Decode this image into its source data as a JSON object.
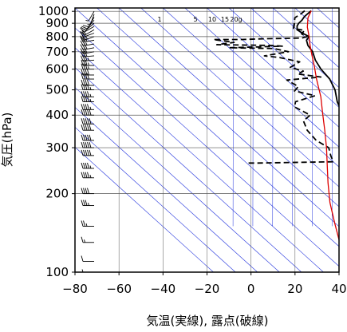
{
  "chart_data": {
    "type": "line",
    "title": "",
    "xlabel": "気温(実線), 露点(破線)",
    "ylabel": "気圧(hPa)",
    "xlim": [
      -80,
      40
    ],
    "ylim": [
      1030,
      100
    ],
    "y_scale": "log",
    "grid": true,
    "x_ticks": [
      -80,
      -60,
      -40,
      -20,
      0,
      20,
      40
    ],
    "y_ticks": [
      100,
      200,
      300,
      400,
      500,
      600,
      700,
      800,
      900,
      1000
    ],
    "mixing_ratio_labels": [
      "1",
      "5",
      "10",
      "15",
      "20g"
    ],
    "colors": {
      "temperature": "#000000",
      "dewpoint": "#000000",
      "parcel": "#dd0000",
      "isotherm": "#2233dd",
      "grid": "#555555"
    },
    "series": [
      {
        "key": "temperature",
        "style": "solid",
        "points": [
          [
            26,
            1005
          ],
          [
            23,
            980
          ],
          [
            20,
            955
          ],
          [
            17,
            925
          ],
          [
            14,
            900
          ],
          [
            12,
            880
          ],
          [
            10,
            850
          ],
          [
            11,
            820
          ],
          [
            12,
            800
          ],
          [
            9,
            775
          ],
          [
            7,
            740
          ],
          [
            6,
            700
          ],
          [
            3,
            650
          ],
          [
            1,
            600
          ],
          [
            0,
            550
          ],
          [
            -3,
            500
          ],
          [
            -8,
            450
          ],
          [
            -12,
            400
          ],
          [
            -18,
            350
          ],
          [
            -25,
            300
          ],
          [
            -33,
            250
          ],
          [
            -43,
            200
          ],
          [
            -52,
            170
          ],
          [
            -58,
            150
          ],
          [
            -65,
            130
          ],
          [
            -68,
            120
          ],
          [
            -70,
            115
          ],
          [
            -72,
            110
          ],
          [
            -71,
            106
          ],
          [
            -72,
            103
          ],
          [
            -72,
            100
          ]
        ]
      },
      {
        "key": "dewpoint",
        "style": "dashed",
        "points": [
          [
            23,
            1005
          ],
          [
            20,
            980
          ],
          [
            15,
            945
          ],
          [
            12,
            900
          ],
          [
            9,
            860
          ],
          [
            13,
            845
          ],
          [
            10,
            820
          ],
          [
            11,
            800
          ],
          [
            8,
            790
          ],
          [
            -10,
            785
          ],
          [
            -20,
            780
          ],
          [
            -33,
            780
          ],
          [
            -25,
            760
          ],
          [
            -34,
            745
          ],
          [
            -10,
            740
          ],
          [
            -5,
            735
          ],
          [
            -30,
            725
          ],
          [
            -10,
            720
          ],
          [
            -5,
            700
          ],
          [
            -18,
            675
          ],
          [
            -12,
            665
          ],
          [
            -5,
            640
          ],
          [
            -12,
            610
          ],
          [
            -8,
            590
          ],
          [
            -12,
            575
          ],
          [
            -3,
            560
          ],
          [
            -20,
            545
          ],
          [
            -18,
            515
          ],
          [
            -22,
            495
          ],
          [
            -15,
            475
          ],
          [
            -27,
            450
          ],
          [
            -30,
            430
          ],
          [
            -27,
            400
          ],
          [
            -33,
            380
          ],
          [
            -36,
            350
          ],
          [
            -37,
            320
          ],
          [
            -35,
            300
          ],
          [
            -38,
            280
          ],
          [
            -40,
            265
          ],
          [
            -75,
            262
          ],
          [
            -80,
            262
          ]
        ]
      },
      {
        "key": "parcel",
        "style": "solid",
        "points": [
          [
            26,
            1005
          ],
          [
            21,
            945
          ],
          [
            16,
            870
          ],
          [
            12,
            800
          ],
          [
            8,
            740
          ],
          [
            4,
            680
          ],
          [
            -1,
            610
          ],
          [
            -6,
            550
          ],
          [
            -13,
            470
          ],
          [
            -20,
            410
          ],
          [
            -28,
            350
          ],
          [
            -36,
            300
          ],
          [
            -46,
            250
          ],
          [
            -53,
            220
          ],
          [
            -62,
            185
          ],
          [
            -70,
            155
          ],
          [
            -76,
            135
          ],
          [
            -80,
            123
          ]
        ]
      }
    ],
    "wind_barbs": [
      {
        "pressure": 1000,
        "direction": 210,
        "speed_kt": 5
      },
      {
        "pressure": 975,
        "direction": 200,
        "speed_kt": 5
      },
      {
        "pressure": 950,
        "direction": 210,
        "speed_kt": 10
      },
      {
        "pressure": 925,
        "direction": 220,
        "speed_kt": 10
      },
      {
        "pressure": 900,
        "direction": 230,
        "speed_kt": 15
      },
      {
        "pressure": 875,
        "direction": 240,
        "speed_kt": 15
      },
      {
        "pressure": 850,
        "direction": 240,
        "speed_kt": 20
      },
      {
        "pressure": 825,
        "direction": 250,
        "speed_kt": 20
      },
      {
        "pressure": 800,
        "direction": 250,
        "speed_kt": 25
      },
      {
        "pressure": 775,
        "direction": 260,
        "speed_kt": 25
      },
      {
        "pressure": 750,
        "direction": 260,
        "speed_kt": 25
      },
      {
        "pressure": 725,
        "direction": 260,
        "speed_kt": 30
      },
      {
        "pressure": 700,
        "direction": 260,
        "speed_kt": 30
      },
      {
        "pressure": 675,
        "direction": 265,
        "speed_kt": 30
      },
      {
        "pressure": 650,
        "direction": 265,
        "speed_kt": 35
      },
      {
        "pressure": 620,
        "direction": 270,
        "speed_kt": 35
      },
      {
        "pressure": 600,
        "direction": 270,
        "speed_kt": 35
      },
      {
        "pressure": 570,
        "direction": 270,
        "speed_kt": 40
      },
      {
        "pressure": 550,
        "direction": 270,
        "speed_kt": 40
      },
      {
        "pressure": 520,
        "direction": 270,
        "speed_kt": 40
      },
      {
        "pressure": 500,
        "direction": 270,
        "speed_kt": 45
      },
      {
        "pressure": 470,
        "direction": 270,
        "speed_kt": 45
      },
      {
        "pressure": 450,
        "direction": 270,
        "speed_kt": 45
      },
      {
        "pressure": 420,
        "direction": 270,
        "speed_kt": 45
      },
      {
        "pressure": 400,
        "direction": 270,
        "speed_kt": 50
      },
      {
        "pressure": 370,
        "direction": 270,
        "speed_kt": 50
      },
      {
        "pressure": 350,
        "direction": 270,
        "speed_kt": 50
      },
      {
        "pressure": 320,
        "direction": 270,
        "speed_kt": 50
      },
      {
        "pressure": 300,
        "direction": 270,
        "speed_kt": 50
      },
      {
        "pressure": 280,
        "direction": 270,
        "speed_kt": 50
      },
      {
        "pressure": 250,
        "direction": 270,
        "speed_kt": 45
      },
      {
        "pressure": 230,
        "direction": 270,
        "speed_kt": 45
      },
      {
        "pressure": 200,
        "direction": 270,
        "speed_kt": 40
      },
      {
        "pressure": 180,
        "direction": 270,
        "speed_kt": 35
      },
      {
        "pressure": 150,
        "direction": 270,
        "speed_kt": 25
      },
      {
        "pressure": 130,
        "direction": 270,
        "speed_kt": 15
      },
      {
        "pressure": 110,
        "direction": 270,
        "speed_kt": 10
      },
      {
        "pressure": 100,
        "direction": 270,
        "speed_kt": 5
      }
    ]
  }
}
